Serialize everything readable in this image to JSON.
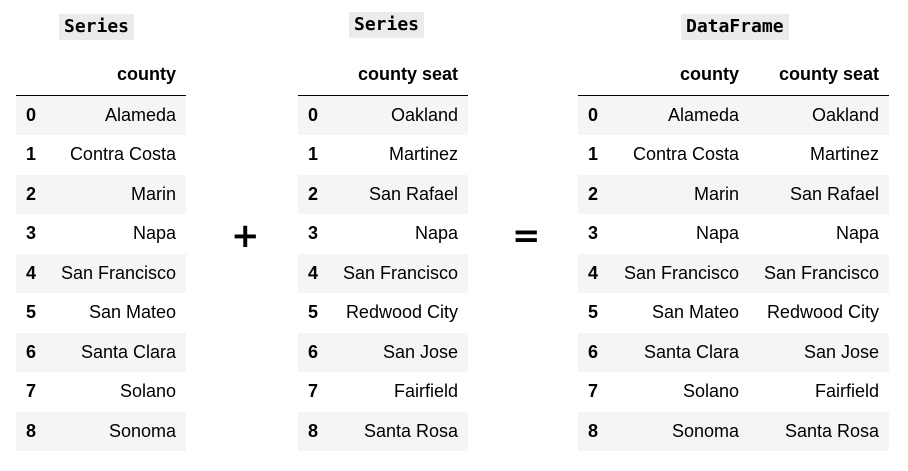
{
  "left": {
    "title": "Series",
    "columns": [
      "county"
    ],
    "rows": [
      {
        "index": "0",
        "values": [
          "Alameda"
        ]
      },
      {
        "index": "1",
        "values": [
          "Contra Costa"
        ]
      },
      {
        "index": "2",
        "values": [
          "Marin"
        ]
      },
      {
        "index": "3",
        "values": [
          "Napa"
        ]
      },
      {
        "index": "4",
        "values": [
          "San Francisco"
        ]
      },
      {
        "index": "5",
        "values": [
          "San Mateo"
        ]
      },
      {
        "index": "6",
        "values": [
          "Santa Clara"
        ]
      },
      {
        "index": "7",
        "values": [
          "Solano"
        ]
      },
      {
        "index": "8",
        "values": [
          "Sonoma"
        ]
      }
    ]
  },
  "middle": {
    "title": "Series",
    "columns": [
      "county seat"
    ],
    "rows": [
      {
        "index": "0",
        "values": [
          "Oakland"
        ]
      },
      {
        "index": "1",
        "values": [
          "Martinez"
        ]
      },
      {
        "index": "2",
        "values": [
          "San Rafael"
        ]
      },
      {
        "index": "3",
        "values": [
          "Napa"
        ]
      },
      {
        "index": "4",
        "values": [
          "San Francisco"
        ]
      },
      {
        "index": "5",
        "values": [
          "Redwood City"
        ]
      },
      {
        "index": "6",
        "values": [
          "San Jose"
        ]
      },
      {
        "index": "7",
        "values": [
          "Fairfield"
        ]
      },
      {
        "index": "8",
        "values": [
          "Santa Rosa"
        ]
      }
    ]
  },
  "right": {
    "title": "DataFrame",
    "columns": [
      "county",
      "county seat"
    ],
    "rows": [
      {
        "index": "0",
        "values": [
          "Alameda",
          "Oakland"
        ]
      },
      {
        "index": "1",
        "values": [
          "Contra Costa",
          "Martinez"
        ]
      },
      {
        "index": "2",
        "values": [
          "Marin",
          "San Rafael"
        ]
      },
      {
        "index": "3",
        "values": [
          "Napa",
          "Napa"
        ]
      },
      {
        "index": "4",
        "values": [
          "San Francisco",
          "San Francisco"
        ]
      },
      {
        "index": "5",
        "values": [
          "San Mateo",
          "Redwood City"
        ]
      },
      {
        "index": "6",
        "values": [
          "Santa Clara",
          "San Jose"
        ]
      },
      {
        "index": "7",
        "values": [
          "Solano",
          "Fairfield"
        ]
      },
      {
        "index": "8",
        "values": [
          "Sonoma",
          "Santa Rosa"
        ]
      }
    ]
  },
  "operators": {
    "plus": "+",
    "equals": "="
  }
}
